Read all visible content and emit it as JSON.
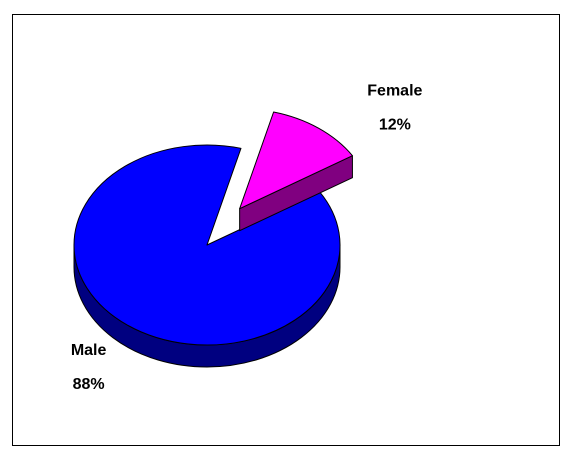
{
  "chart_data": {
    "type": "pie",
    "categories": [
      "Male",
      "Female"
    ],
    "values": [
      88,
      12
    ],
    "value_labels": [
      "88%",
      "12%"
    ],
    "colors": [
      "#0000ff",
      "#ff00ff"
    ],
    "side_colors": [
      "#000080",
      "#800080"
    ]
  }
}
